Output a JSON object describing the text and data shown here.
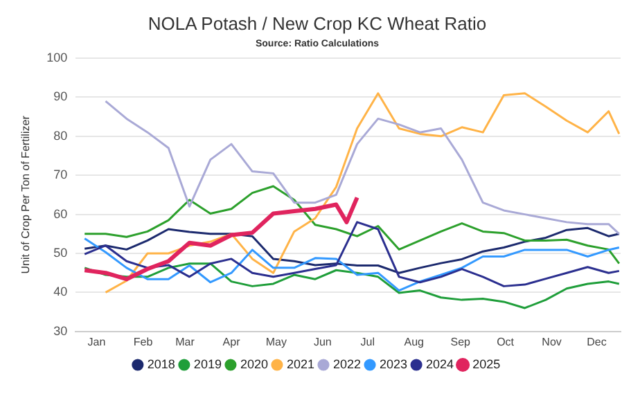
{
  "chart_data": {
    "type": "line",
    "title": "NOLA Potash / New Crop KC Wheat Ratio",
    "subtitle": "Source: Ratio Calculations",
    "ylabel": "Unit of Crop Per Ton of Fertilizer",
    "x": [
      "--01-07",
      "--01-21",
      "--02-04",
      "--02-18",
      "--03-04",
      "--03-18",
      "--04-01",
      "--04-15",
      "--04-29",
      "--05-13",
      "--05-27",
      "--06-10",
      "--06-24",
      "--07-08",
      "--07-22",
      "--08-05",
      "--08-19",
      "--09-02",
      "--09-16",
      "--09-30",
      "--10-14",
      "--10-28",
      "--11-11",
      "--11-25",
      "--12-09",
      "--12-23",
      "--12-30"
    ],
    "xlim": [
      "--01-01",
      "--12-31"
    ],
    "xticks": [
      {
        "value": "--01-15",
        "label": "Jan"
      },
      {
        "value": "--02-15",
        "label": "Feb"
      },
      {
        "value": "--03-15",
        "label": "Mar"
      },
      {
        "value": "--04-15",
        "label": "Apr"
      },
      {
        "value": "--05-15",
        "label": "May"
      },
      {
        "value": "--06-15",
        "label": "Jun"
      },
      {
        "value": "--07-15",
        "label": "Jul"
      },
      {
        "value": "--08-15",
        "label": "Aug"
      },
      {
        "value": "--09-15",
        "label": "Sep"
      },
      {
        "value": "--10-15",
        "label": "Oct"
      },
      {
        "value": "--11-15",
        "label": "Nov"
      },
      {
        "value": "--12-15",
        "label": "Dec"
      }
    ],
    "ylim": [
      30,
      100
    ],
    "yticks": [
      30,
      40,
      50,
      60,
      70,
      80,
      90,
      100
    ],
    "grid": "y",
    "legend": "bottom",
    "marker": "none",
    "line_style": "solid",
    "series": [
      {
        "name": "2018",
        "color": "#1c2a6e",
        "values": [
          51.2,
          52,
          51,
          53.3,
          56.2,
          55.5,
          55,
          55,
          54.4,
          48.6,
          48,
          47,
          47.4,
          46.9,
          46.9,
          45,
          46.3,
          47.5,
          48.5,
          50.5,
          51.5,
          53,
          54,
          56,
          56.5,
          54.4,
          55
        ]
      },
      {
        "name": "2019",
        "color": "#1f9e3a",
        "values": [
          46.3,
          44.5,
          44,
          44,
          46.3,
          47.4,
          47.4,
          42.8,
          41.6,
          42.2,
          44.5,
          43.4,
          45.7,
          45,
          44,
          39.9,
          40.5,
          38.7,
          38.1,
          38.4,
          37.6,
          36,
          38.1,
          41,
          42.2,
          42.8,
          42.2
        ]
      },
      {
        "name": "2020",
        "color": "#2ca02c",
        "values": [
          55,
          55,
          54.2,
          55.6,
          58.5,
          63.7,
          60.2,
          61.4,
          65.5,
          67.2,
          63.7,
          57.3,
          56.2,
          54.4,
          57,
          51,
          53.3,
          55.6,
          57.7,
          55.6,
          55.2,
          53.3,
          53.3,
          53.5,
          52,
          51,
          47.4
        ]
      },
      {
        "name": "2021",
        "color": "#ffb347",
        "values": [
          null,
          40,
          43,
          50,
          50,
          52,
          53,
          55,
          48.6,
          45,
          55.6,
          59,
          67,
          82,
          91,
          82,
          80.6,
          80,
          82.3,
          81,
          90.5,
          91,
          87.6,
          84,
          81,
          86.4,
          80.6
        ]
      },
      {
        "name": "2022",
        "color": "#a9a9d6",
        "values": [
          null,
          89,
          84.5,
          81,
          77,
          62,
          74,
          78,
          71,
          70.5,
          63,
          63,
          65,
          78,
          84.5,
          83,
          81,
          82,
          74,
          63,
          61,
          60,
          59,
          58,
          57.5,
          57.5,
          55
        ]
      },
      {
        "name": "2023",
        "color": "#3399ff",
        "values": [
          53.8,
          50.3,
          46.3,
          43.4,
          43.4,
          46.9,
          42.6,
          45,
          50.9,
          46.3,
          46.3,
          48.8,
          48.6,
          44.5,
          45,
          40.5,
          42.8,
          44.5,
          46.3,
          49.2,
          49.2,
          50.9,
          50.9,
          50.9,
          49.2,
          50.9,
          51.5
        ]
      },
      {
        "name": "2024",
        "color": "#2b2f8f",
        "values": [
          49.8,
          52,
          48,
          46.3,
          47,
          44,
          47.4,
          48.6,
          45,
          44,
          45,
          46,
          47,
          58,
          56.2,
          44,
          42.6,
          44,
          46,
          44,
          41.6,
          42,
          43.5,
          45,
          46.5,
          45,
          45.5
        ]
      },
      {
        "name": "2025",
        "color": "#e0245e",
        "x": [
          "--01-07",
          "--01-21",
          "--02-04",
          "--02-18",
          "--03-04",
          "--03-18",
          "--04-01",
          "--04-15",
          "--04-29",
          "--05-13",
          "--05-27",
          "--06-10",
          "--06-24",
          "--07-01",
          "--07-08"
        ],
        "values": [
          45.7,
          45,
          43.4,
          46,
          48,
          52.7,
          52,
          54.7,
          55.3,
          60.2,
          60.8,
          61.4,
          62.5,
          58,
          64.3
        ]
      }
    ]
  }
}
